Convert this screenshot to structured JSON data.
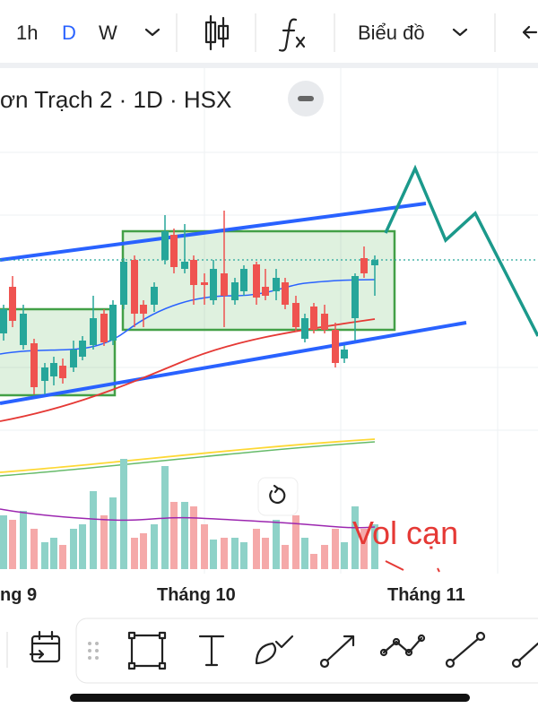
{
  "toolbar": {
    "intervals": [
      "1h",
      "D",
      "W"
    ],
    "chart_type": "Biểu đồ"
  },
  "chart": {
    "title": "ơn Trạch 2 · 1D · HSX",
    "annotation": "Vol cạn",
    "x_labels": [
      "ng 9",
      "Tháng 10",
      "Tháng 11"
    ]
  }
}
